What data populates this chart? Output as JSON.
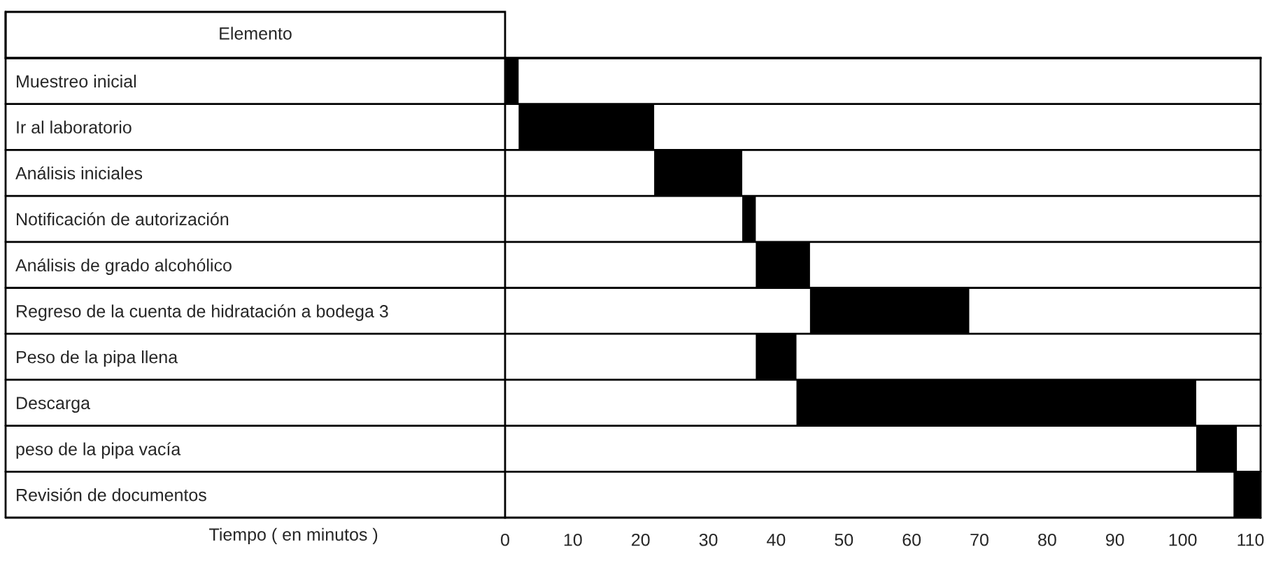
{
  "chart_data": {
    "type": "bar",
    "orientation": "horizontal",
    "ylabel": "Elemento",
    "xlabel": "Tiempo ( en minutos )",
    "categories": [
      "Muestreo inicial",
      "Ir al laboratorio",
      "Análisis iniciales",
      "Notificación de autorización",
      "Análisis de grado alcohólico",
      "Regreso de la cuenta de hidratación a bodega 3",
      "Peso de la pipa llena",
      "Descarga",
      "peso de la pipa vacía",
      "Revisión de documentos"
    ],
    "base": [
      0,
      2,
      22,
      35,
      37,
      45,
      37,
      43,
      102,
      107.5
    ],
    "values": [
      2,
      20,
      13,
      2,
      8,
      23.5,
      6,
      59,
      6,
      4
    ],
    "color": "#000000",
    "xlim": [
      0,
      111.5
    ],
    "xticks": [
      0,
      10,
      20,
      30,
      40,
      50,
      60,
      70,
      80,
      90,
      100,
      110
    ],
    "grid": false,
    "legend": false
  }
}
